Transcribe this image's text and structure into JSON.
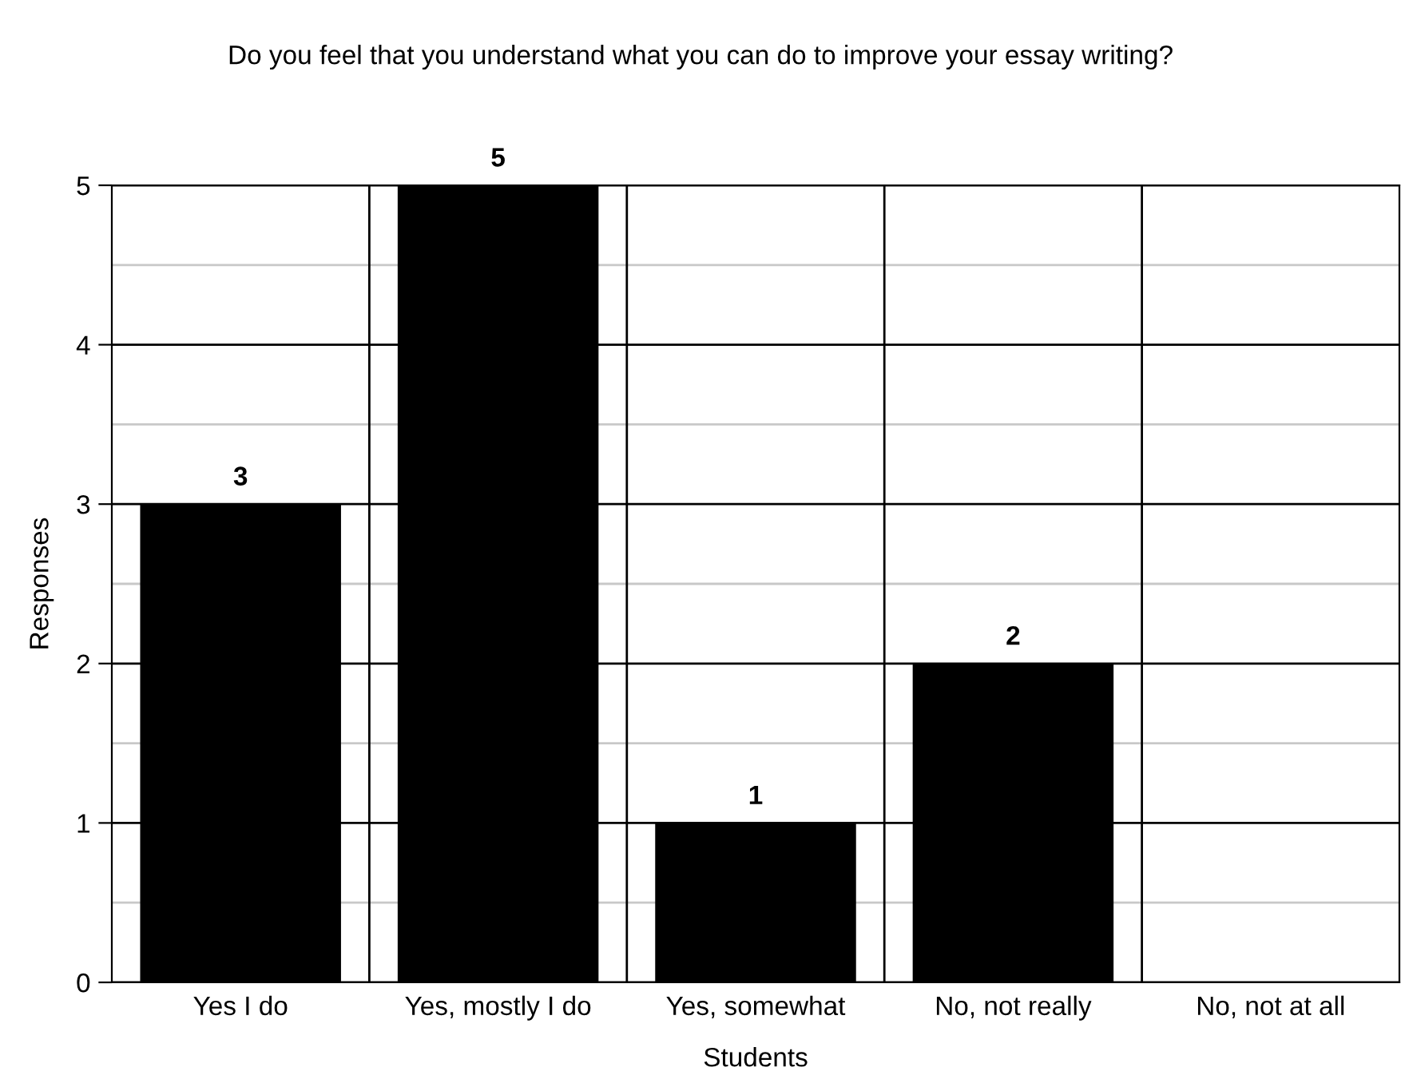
{
  "chart_data": {
    "type": "bar",
    "title": "Do you feel that you understand what you can do to improve your essay writing?",
    "xlabel": "Students",
    "ylabel": "Responses",
    "categories": [
      "Yes I do",
      "Yes, mostly I do",
      "Yes, somewhat",
      "No, not really",
      "No, not at all"
    ],
    "values": [
      3,
      5,
      1,
      2,
      0
    ],
    "color": "#000000",
    "value_labels": [
      "3",
      "5",
      "1",
      "2",
      null
    ],
    "ylim": [
      0,
      5
    ],
    "yticks": [
      0,
      1,
      2,
      3,
      4,
      5
    ],
    "grid": true,
    "legend": false
  }
}
